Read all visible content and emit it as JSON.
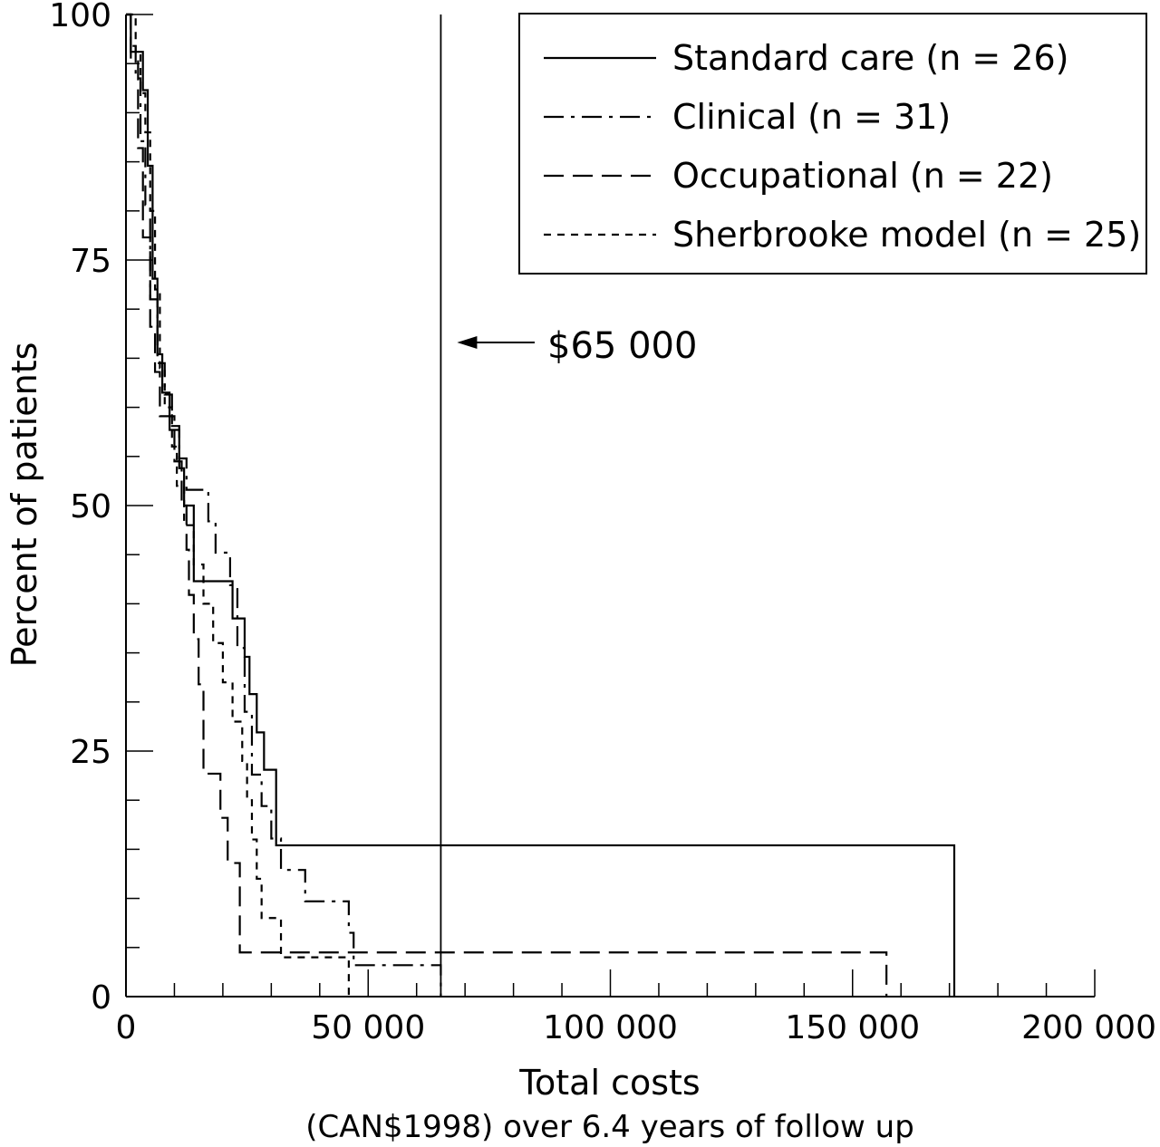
{
  "chart_data": {
    "type": "line",
    "title": "",
    "xlabel": "Total costs",
    "xlabel_sub": "(CAN$1998) over 6.4 years of follow up",
    "ylabel": "Percent of patients",
    "xlim": [
      0,
      200000
    ],
    "ylim": [
      0,
      100
    ],
    "xticks": [
      0,
      50000,
      100000,
      150000,
      200000
    ],
    "xtick_labels": [
      "0",
      "50 000",
      "100 000",
      "150 000",
      "200 000"
    ],
    "yticks": [
      0,
      25,
      50,
      75,
      100
    ],
    "ytick_labels": [
      "0",
      "25",
      "50",
      "75",
      "100"
    ],
    "grid": false,
    "legend_position": "top-right",
    "annotation": {
      "x": 65000,
      "label": "$65 000"
    },
    "series": [
      {
        "name": "Standard care (n = 26)",
        "style": "solid",
        "x": [
          0,
          1000,
          1500,
          3500,
          4500,
          5500,
          6500,
          7500,
          9000,
          10500,
          11000,
          12000,
          13000,
          14000,
          19000,
          22000,
          23000,
          24500,
          25500,
          27000,
          28500,
          30500,
          31000,
          132000,
          171000,
          171000
        ],
        "y": [
          100,
          96.2,
          96.2,
          92.3,
          84.6,
          73.1,
          65.4,
          61.5,
          57.7,
          57.7,
          53.8,
          50,
          50,
          42.3,
          42.3,
          38.5,
          38.5,
          34.6,
          30.8,
          26.9,
          23.1,
          23.1,
          15.4,
          15.4,
          10.3,
          0
        ]
      },
      {
        "name": "Clinical (n = 31)",
        "style": "dash-dot",
        "x": [
          0,
          1000,
          2000,
          3000,
          4000,
          5000,
          6500,
          8000,
          9500,
          11000,
          12500,
          15000,
          17000,
          18500,
          20000,
          21500,
          23000,
          24500,
          26000,
          28000,
          30000,
          32000,
          35000,
          37000,
          45000,
          46000,
          47000,
          65000,
          65000
        ],
        "y": [
          100,
          96.8,
          93.5,
          87.1,
          80.6,
          71,
          64.5,
          61.3,
          58.1,
          54.8,
          51.6,
          51.6,
          48.4,
          45.2,
          45.2,
          41.9,
          35.5,
          29,
          22.6,
          19.4,
          16.1,
          12.9,
          12.9,
          9.7,
          9.7,
          6.5,
          3.2,
          3.2,
          0
        ]
      },
      {
        "name": "Occupational (n = 22)",
        "style": "dashed",
        "x": [
          0,
          1000,
          2500,
          3500,
          5000,
          6000,
          7000,
          8500,
          10000,
          11500,
          12500,
          13000,
          14000,
          15000,
          16000,
          17500,
          19500,
          21000,
          23500,
          157000,
          157000
        ],
        "y": [
          100,
          95.5,
          86.4,
          77.3,
          68.2,
          63.6,
          59.1,
          59.1,
          54.5,
          50,
          45.5,
          40.9,
          36.4,
          31.8,
          22.7,
          22.7,
          18.2,
          13.6,
          4.5,
          4.5,
          0
        ]
      },
      {
        "name": "Sherbrooke model (n = 25)",
        "style": "dotted",
        "x": [
          0,
          2000,
          3000,
          4000,
          5000,
          6000,
          7000,
          8000,
          9500,
          10500,
          12000,
          14000,
          16000,
          18000,
          20000,
          22000,
          24000,
          25000,
          26000,
          27000,
          28000,
          30000,
          32000,
          34000,
          45000,
          46000
        ],
        "y": [
          100,
          96,
          92,
          88,
          80,
          72,
          64,
          60,
          56,
          52,
          48,
          44,
          40,
          36,
          32,
          28,
          24,
          20,
          16,
          12,
          8,
          8,
          4,
          4,
          4,
          0
        ]
      }
    ]
  }
}
